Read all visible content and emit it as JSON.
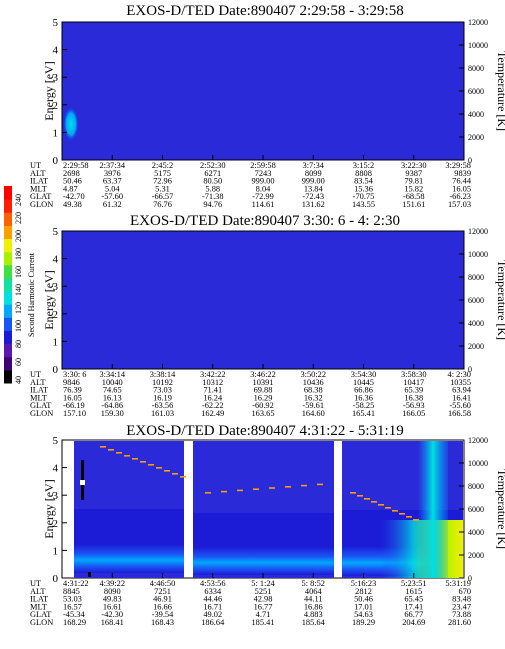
{
  "colors": {
    "bg_level": "#2a2ad8",
    "colorbar": [
      "#000000",
      "#40007a",
      "#5a1ab0",
      "#1c1cd6",
      "#1c54f4",
      "#00a8ff",
      "#00e0e0",
      "#14e0a0",
      "#40e040",
      "#a8f000",
      "#f0f000",
      "#ffa000",
      "#ff6000",
      "#ff2000",
      "#ff0000"
    ]
  },
  "colorbar": {
    "title": "Second Harmonic Current",
    "ticks": [
      "40",
      "60",
      "80",
      "100",
      "120",
      "140",
      "160",
      "180",
      "200",
      "220",
      "240"
    ]
  },
  "chart_data": [
    {
      "type": "heatmap",
      "title": "EXOS-D/TED   Date:890407  2:29:58 - 3:29:58",
      "ylabel": "Energy [eV]",
      "y2label": "Temperature [K]",
      "ylim": [
        0,
        5
      ],
      "y2lim": [
        0,
        12000
      ],
      "yticks": [
        "0",
        "1",
        "2",
        "3",
        "4",
        "5"
      ],
      "y2ticks": [
        "0",
        "2000",
        "4000",
        "6000",
        "8000",
        "10000",
        "12000"
      ],
      "table": {
        "row_labels": [
          "UT",
          "ALT",
          "ILAT",
          "MLT",
          "GLAT",
          "GLON"
        ],
        "columns": [
          [
            "2:29:58",
            "2698",
            "50.46",
            "4.87",
            "-42.70",
            "49.38"
          ],
          [
            "2:37:34",
            "3976",
            "63.37",
            "5.04",
            "-57.60",
            "61.32"
          ],
          [
            "2:45:2",
            "5175",
            "72.96",
            "5.31",
            "-66.57",
            "76.76"
          ],
          [
            "2:52:30",
            "6271",
            "80.50",
            "5.88",
            "-71.38",
            "94.76"
          ],
          [
            "2:59:58",
            "7243",
            "999.00",
            "8.04",
            "-72.99",
            "114.61"
          ],
          [
            "3:7:34",
            "8099",
            "999.00",
            "13.84",
            "-72.43",
            "131.62"
          ],
          [
            "3:15:2",
            "8808",
            "83.54",
            "15.36",
            "-70.75",
            "143.55"
          ],
          [
            "3:22:30",
            "9387",
            "79.81",
            "15.82",
            "-68.58",
            "151.61"
          ],
          [
            "3:29:58",
            "9839",
            "76.44",
            "16.05",
            "-66.23",
            "157.03"
          ]
        ]
      }
    },
    {
      "type": "heatmap",
      "title": "EXOS-D/TED   Date:890407  3:30: 6 - 4: 2:30",
      "ylabel": "Energy [eV]",
      "y2label": "Temperature [K]",
      "ylim": [
        0,
        5
      ],
      "y2lim": [
        0,
        12000
      ],
      "yticks": [
        "0",
        "1",
        "2",
        "3",
        "4",
        "5"
      ],
      "y2ticks": [
        "0",
        "2000",
        "4000",
        "6000",
        "8000",
        "10000",
        "12000"
      ],
      "table": {
        "row_labels": [
          "UT",
          "ALT",
          "ILAT",
          "MLT",
          "GLAT",
          "GLON"
        ],
        "columns": [
          [
            "3:30: 6",
            "9846",
            "76.39",
            "16.05",
            "-66.19",
            "157.10"
          ],
          [
            "3:34:14",
            "10040",
            "74.65",
            "16.13",
            "-64.86",
            "159.30"
          ],
          [
            "3:38:14",
            "10192",
            "73.03",
            "16.19",
            "-63.56",
            "161.03"
          ],
          [
            "3:42:22",
            "10312",
            "71.41",
            "16.24",
            "-62.22",
            "162.49"
          ],
          [
            "3:46:22",
            "10391",
            "69.88",
            "16.29",
            "-60.92",
            "163.65"
          ],
          [
            "3:50:22",
            "10436",
            "68.38",
            "16.32",
            "-59.61",
            "164.60"
          ],
          [
            "3:54:30",
            "10445",
            "66.86",
            "16.36",
            "-58.25",
            "165.41"
          ],
          [
            "3:58:30",
            "10417",
            "65.39",
            "16.38",
            "-56.93",
            "166.05"
          ],
          [
            "4: 2:30",
            "10355",
            "63.94",
            "16.41",
            "-55.60",
            "166.58"
          ]
        ]
      }
    },
    {
      "type": "heatmap",
      "title": "EXOS-D/TED   Date:890407  4:31:22 - 5:31:19",
      "ylabel": "Energy [eV]",
      "y2label": "Temperature [K]",
      "ylim": [
        0,
        5
      ],
      "y2lim": [
        0,
        12000
      ],
      "yticks": [
        "0",
        "1",
        "2",
        "3",
        "4",
        "5"
      ],
      "y2ticks": [
        "0",
        "2000",
        "4000",
        "6000",
        "8000",
        "10000",
        "12000"
      ],
      "table": {
        "row_labels": [
          "UT",
          "ALT",
          "ILAT",
          "MLT",
          "GLAT",
          "GLON"
        ],
        "columns": [
          [
            "4:31:22",
            "8845",
            "53.03",
            "16.57",
            "-45.34",
            "168.29"
          ],
          [
            "4:39:22",
            "8090",
            "49.83",
            "16.61",
            "-42.30",
            "168.41"
          ],
          [
            "4:46:50",
            "7251",
            "46.91",
            "16.66",
            "-39.54",
            "168.43"
          ],
          [
            "4:53:56",
            "6334",
            "44.46",
            "16.71",
            "49.02",
            "186.64"
          ],
          [
            "5: 1:24",
            "5251",
            "42.98",
            "16.77",
            "4.71",
            "185.41"
          ],
          [
            "5: 8:52",
            "4064",
            "44.11",
            "16.86",
            "4.883",
            "185.64"
          ],
          [
            "5:16:23",
            "2812",
            "50.46",
            "17.01",
            "54.63",
            "189.29"
          ],
          [
            "5:23:51",
            "1615",
            "65.45",
            "17.41",
            "66.77",
            "204.69"
          ],
          [
            "5:31:19",
            "670",
            "83.48",
            "23.47",
            "73.88",
            "281.60"
          ]
        ]
      }
    }
  ]
}
